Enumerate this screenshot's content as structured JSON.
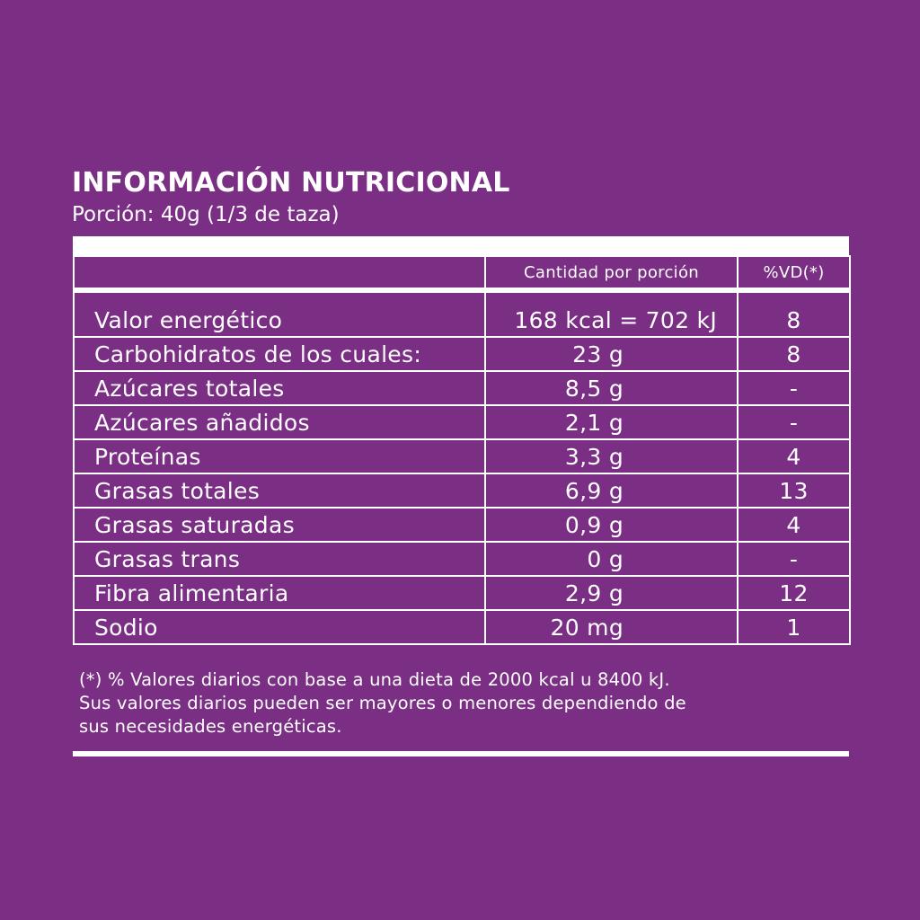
{
  "label": {
    "title": "INFORMACIÓN NUTRICIONAL",
    "serving": "Porción: 40g (1/3 de taza)",
    "columns": {
      "nutrient": "",
      "quantity": "Cantidad por porción",
      "daily_value": "%VD(*)"
    },
    "rows": [
      {
        "name": "Valor energético",
        "quantity": "168 kcal = 702 kJ",
        "dv": "8"
      },
      {
        "name": "Carbohidratos de los cuales:",
        "quantity": "23 g",
        "dv": "8"
      },
      {
        "name": "Azúcares totales",
        "quantity": "8,5 g",
        "dv": "-"
      },
      {
        "name": "Azúcares añadidos",
        "quantity": "2,1 g",
        "dv": "-"
      },
      {
        "name": "Proteínas",
        "quantity": "3,3 g",
        "dv": "4"
      },
      {
        "name": "Grasas totales",
        "quantity": "6,9 g",
        "dv": "13"
      },
      {
        "name": "Grasas saturadas",
        "quantity": "0,9 g",
        "dv": "4"
      },
      {
        "name": "Grasas trans",
        "quantity": "0 g",
        "dv": "-"
      },
      {
        "name": "Fibra alimentaria",
        "quantity": "2,9 g",
        "dv": "12"
      },
      {
        "name": "Sodio",
        "quantity": "20 mg",
        "dv": "1"
      }
    ],
    "footnote": [
      "(*) % Valores diarios con base a una dieta de 2000 kcal u 8400 kJ.",
      "Sus valores diarios pueden ser mayores o menores dependiendo de",
      "sus necesidades energéticas."
    ]
  },
  "colors": {
    "background": "#7a2e84",
    "foreground": "#ffffff"
  }
}
